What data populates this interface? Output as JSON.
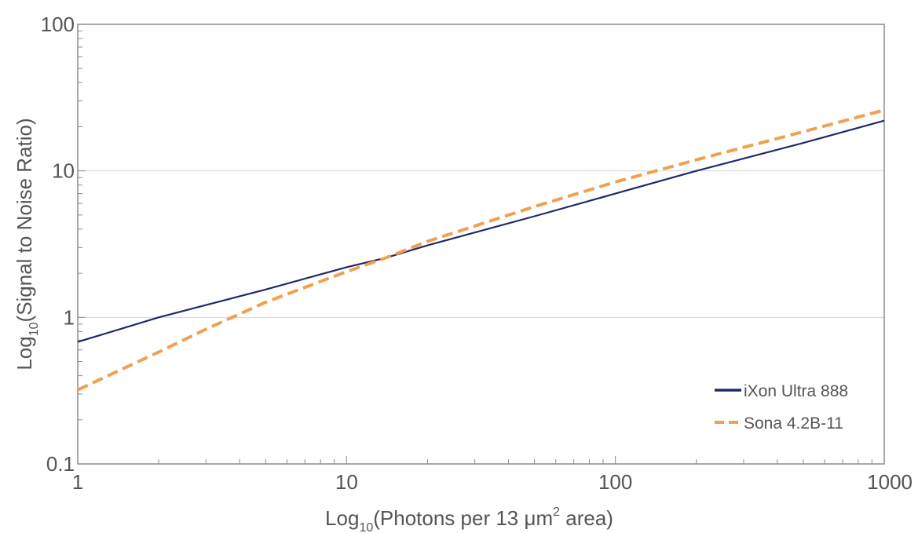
{
  "chart_data": {
    "type": "line",
    "x_scale": "log",
    "y_scale": "log",
    "xlim": [
      1,
      1000
    ],
    "ylim": [
      0.1,
      100
    ],
    "x_ticks": [
      "1",
      "10",
      "100",
      "1000"
    ],
    "y_ticks": [
      "0.1",
      "1",
      "10",
      "100"
    ],
    "xlabel": {
      "prefix": "Log",
      "sub": "10",
      "main": "(Photons per 13 μm",
      "sup": "2",
      "suffix": " area)"
    },
    "ylabel": {
      "prefix": "Log",
      "sub": "10",
      "main": "(Signal to Noise Ratio)"
    },
    "grid": "horizontal major",
    "legend_position": "bottom-right",
    "series": [
      {
        "name": "iXon Ultra 888",
        "color": "#1f2a6b",
        "style": "solid",
        "x": [
          1,
          2,
          5,
          10,
          14,
          20,
          50,
          100,
          200,
          500,
          1000
        ],
        "y": [
          0.68,
          1.0,
          1.55,
          2.2,
          2.55,
          3.1,
          4.9,
          7.0,
          10.0,
          15.5,
          22.0
        ]
      },
      {
        "name": "Sona 4.2B-11",
        "color": "#f0a050",
        "style": "dashed",
        "x": [
          1,
          2,
          3,
          5,
          10,
          14,
          20,
          50,
          100,
          200,
          500,
          1000
        ],
        "y": [
          0.32,
          0.58,
          0.83,
          1.27,
          2.05,
          2.55,
          3.3,
          5.7,
          8.4,
          11.9,
          18.5,
          26.0
        ]
      }
    ]
  }
}
